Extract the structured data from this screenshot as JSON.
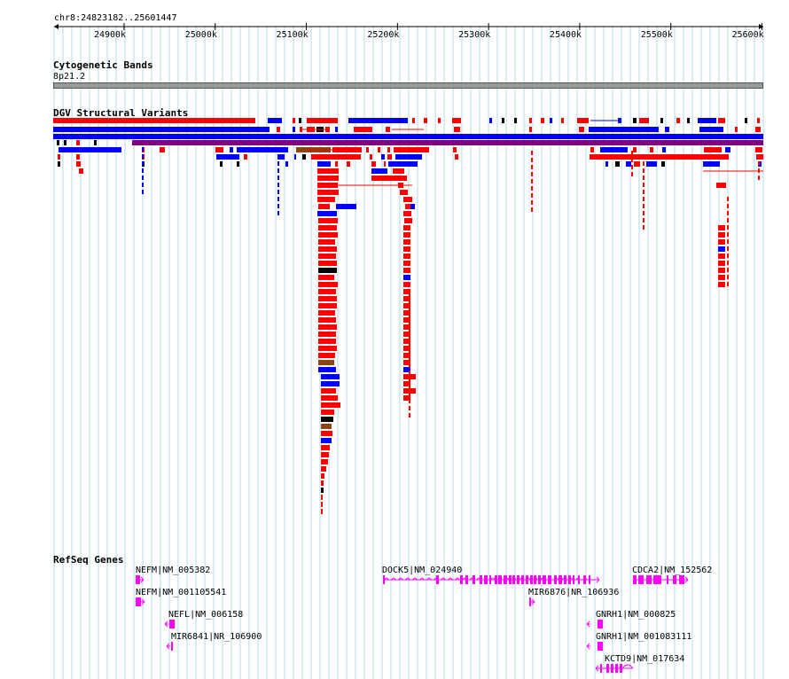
{
  "locus": "chr8:24823182..25601447",
  "ruler": {
    "start": 24823182,
    "end": 25601447,
    "ticks": [
      "24900k",
      "25000k",
      "25100k",
      "25200k",
      "25300k",
      "25400k",
      "25500k",
      "25600k"
    ]
  },
  "tracks": {
    "cytoband": {
      "title": "Cytogenetic Bands",
      "band": "8p21.2"
    },
    "dgv": {
      "title": "DGV Structural Variants"
    },
    "refseq": {
      "title": "RefSeq Genes"
    }
  },
  "genes": [
    {
      "label": "NEFM|NM_005382",
      "strand": "+"
    },
    {
      "label": "NEFM|NM_001105541",
      "strand": "+"
    },
    {
      "label": "NEFL|NM_006158",
      "strand": "-"
    },
    {
      "label": "MIR6841|NR_106900",
      "strand": "-"
    },
    {
      "label": "DOCK5|NM_024940",
      "strand": "+"
    },
    {
      "label": "MIR6876|NR_106936",
      "strand": "+"
    },
    {
      "label": "CDCA2|NM_152562",
      "strand": "+"
    },
    {
      "label": "GNRH1|NM_000825",
      "strand": "-"
    },
    {
      "label": "GNRH1|NM_001083111",
      "strand": "-"
    },
    {
      "label": "KCTD9|NM_017634",
      "strand": "-"
    }
  ],
  "colors": {
    "grid": "#b0d8e6",
    "loss": "#ff0000",
    "gain": "#0000ff",
    "gainloss": "#8b4513",
    "other": "#000000",
    "inversion": "#800080",
    "gene": "#ff00ff",
    "band": "#999999"
  }
}
